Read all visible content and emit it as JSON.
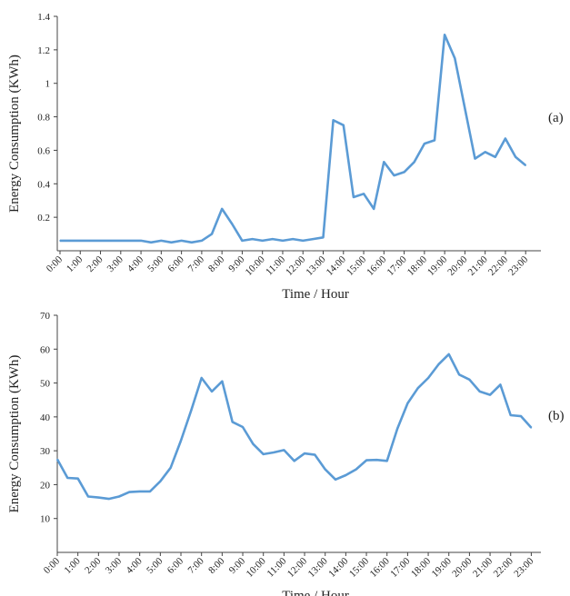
{
  "chart_data": [
    {
      "type": "line",
      "panel_label": "(a)",
      "xlabel": "Time / Hour",
      "ylabel": "Energy Consumption (KWh)",
      "ylim": [
        0,
        1.4
      ],
      "yticks": [
        "0.2",
        "0.4",
        "0.6",
        "0.8",
        "1",
        "1.2",
        "1.4"
      ],
      "xticks": [
        "0:00",
        "1:00",
        "2:00",
        "3:00",
        "4:00",
        "5:00",
        "6:00",
        "7:00",
        "8:00",
        "9:00",
        "10:00",
        "11:00",
        "12:00",
        "13:00",
        "14:00",
        "15:00",
        "16:00",
        "17:00",
        "18:00",
        "19:00",
        "20:00",
        "21:00",
        "22:00",
        "23:00"
      ],
      "line_color": "#5b9bd5",
      "grid": false,
      "x": [
        0,
        0.5,
        1,
        1.5,
        2,
        2.5,
        3,
        3.5,
        4,
        4.5,
        5,
        5.5,
        6,
        6.5,
        7,
        7.5,
        8,
        8.5,
        9,
        9.5,
        10,
        10.5,
        11,
        11.5,
        12,
        12.5,
        13,
        13.5,
        14,
        14.5,
        15,
        15.5,
        16,
        16.5,
        17,
        17.5,
        18,
        18.5,
        19,
        19.5,
        20,
        20.5,
        21,
        21.5,
        22,
        22.5,
        23
      ],
      "values": [
        0.06,
        0.06,
        0.06,
        0.06,
        0.06,
        0.06,
        0.06,
        0.06,
        0.06,
        0.05,
        0.06,
        0.05,
        0.06,
        0.05,
        0.06,
        0.1,
        0.25,
        0.16,
        0.06,
        0.07,
        0.06,
        0.07,
        0.06,
        0.07,
        0.06,
        0.07,
        0.08,
        0.78,
        0.75,
        0.32,
        0.34,
        0.25,
        0.53,
        0.45,
        0.47,
        0.53,
        0.64,
        0.66,
        1.29,
        1.15,
        0.85,
        0.55,
        0.59,
        0.56,
        0.67,
        0.56,
        0.51
      ]
    },
    {
      "type": "line",
      "panel_label": "(b)",
      "xlabel": "Time / Hour",
      "ylabel": "Energy Consumption (KWh)",
      "ylim": [
        0,
        70
      ],
      "yticks": [
        "10",
        "20",
        "30",
        "40",
        "50",
        "60",
        "70"
      ],
      "xticks": [
        "0:00",
        "1:00",
        "2:00",
        "3:00",
        "4:00",
        "5:00",
        "6:00",
        "7:00",
        "8:00",
        "9:00",
        "10:00",
        "11:00",
        "12:00",
        "13:00",
        "14:00",
        "15:00",
        "16:00",
        "17:00",
        "18:00",
        "19:00",
        "20:00",
        "21:00",
        "22:00",
        "23:00"
      ],
      "line_color": "#5b9bd5",
      "grid": false,
      "x": [
        0,
        0.5,
        1,
        1.5,
        2,
        2.5,
        3,
        3.5,
        4,
        4.5,
        5,
        5.5,
        6,
        6.5,
        7,
        7.5,
        8,
        8.5,
        9,
        9.5,
        10,
        10.5,
        11,
        11.5,
        12,
        12.5,
        13,
        13.5,
        14,
        14.5,
        15,
        15.5,
        16,
        16.5,
        17,
        17.5,
        18,
        18.5,
        19,
        19.5,
        20,
        20.5,
        21,
        21.5,
        22,
        22.5,
        23
      ],
      "values": [
        27.5,
        22,
        21.8,
        16.5,
        16.2,
        15.8,
        16.5,
        17.8,
        18,
        18,
        21,
        25,
        33,
        42,
        51.5,
        47.5,
        50.5,
        38.5,
        37,
        32,
        29,
        29.5,
        30.2,
        27,
        29.2,
        28.8,
        24.5,
        21.5,
        22.8,
        24.5,
        27.2,
        27.3,
        27,
        36.5,
        44,
        48.5,
        51.5,
        55.5,
        58.5,
        52.5,
        51,
        47.5,
        46.5,
        49.5,
        40.5,
        40.2,
        36.8
      ]
    }
  ]
}
